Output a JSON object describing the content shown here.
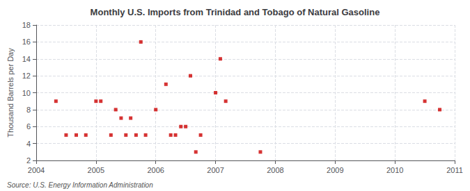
{
  "chart_data": {
    "type": "scatter",
    "title": "Monthly U.S. Imports from Trinidad and Tobago of Natural Gasoline",
    "ylabel": "Thousand Barrels per Day",
    "annotations": [
      "Source: U.S. Energy Information Administration"
    ],
    "x": [
      2004.33,
      2004.5,
      2004.67,
      2004.83,
      2005.0,
      2005.08,
      2005.25,
      2005.33,
      2005.42,
      2005.5,
      2005.58,
      2005.67,
      2005.75,
      2005.83,
      2006.0,
      2006.17,
      2006.25,
      2006.33,
      2006.42,
      2006.5,
      2006.58,
      2006.67,
      2006.75,
      2007.0,
      2007.08,
      2007.17,
      2007.75,
      2010.5,
      2010.75
    ],
    "values": [
      9,
      5,
      5,
      5,
      9,
      9,
      5,
      8,
      7,
      5,
      7,
      5,
      16,
      5,
      8,
      11,
      5,
      5,
      6,
      6,
      12,
      3,
      5,
      10,
      14,
      9,
      3,
      9,
      8
    ],
    "color": "#cc0000",
    "marker": "square",
    "xlim": [
      2004,
      2011
    ],
    "ylim": [
      2,
      18
    ],
    "xticks": [
      2004,
      2005,
      2006,
      2007,
      2008,
      2009,
      2010,
      2011
    ],
    "yticks": [
      2,
      4,
      6,
      8,
      10,
      12,
      14,
      16,
      18
    ],
    "grid": true
  }
}
